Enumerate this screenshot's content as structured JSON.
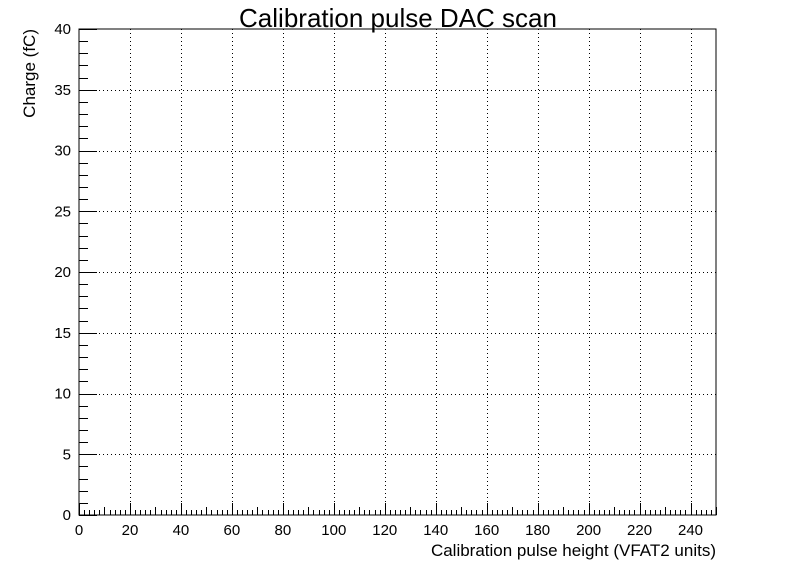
{
  "chart_data": {
    "type": "scatter",
    "title": "Calibration pulse DAC scan",
    "xlabel": "Calibration pulse height (VFAT2 units)",
    "ylabel": "Charge (fC)",
    "xlim": [
      0,
      250
    ],
    "ylim": [
      0,
      40
    ],
    "x_ticks": [
      0,
      20,
      40,
      60,
      80,
      100,
      120,
      140,
      160,
      180,
      200,
      220,
      240
    ],
    "y_ticks": [
      0,
      5,
      10,
      15,
      20,
      25,
      30,
      35,
      40
    ],
    "grid": true,
    "series": []
  }
}
